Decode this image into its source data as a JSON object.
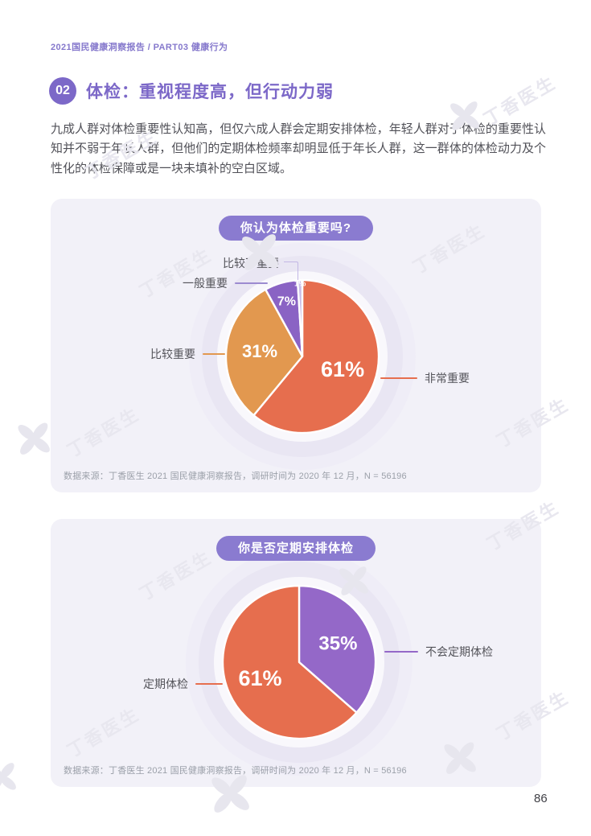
{
  "header": {
    "breadcrumb": "2021国民健康洞察报告 / PART03 健康行为"
  },
  "section": {
    "badge": "02",
    "title": "体检：重视程度高，但行动力弱"
  },
  "intro": "九成人群对体检重要性认知高，但仅六成人群会定期安排体检，年轻人群对于体检的重要性认知并不弱于年长人群，但他们的定期体检频率却明显低于年长人群，这一群体的体检动力及个性化的体检保障或是一块未填补的空白区域。",
  "watermark": {
    "text": "丁香医生"
  },
  "page_number": "86",
  "brand_colors": {
    "purple": "#7C68C8",
    "pill_purple": "#8A7BD0",
    "coral": "#E66E4E",
    "orange": "#E2984F",
    "slice_purple": "#8A63C4",
    "slice_lavender": "#C9BEE8",
    "card_bg": "#F2F1F8"
  },
  "charts": [
    {
      "id": "importance",
      "title": "你认为体检重要吗?",
      "source": "数据来源：丁香医生 2021 国民健康洞察报告，调研时间为 2020 年 12 月，N = 56196",
      "chart_data": {
        "type": "pie",
        "start_angle_deg": 0,
        "legend_position": "callout-lines",
        "series": [
          {
            "label": "非常重要",
            "value": 61,
            "color": "#E66E4E"
          },
          {
            "label": "比较重要",
            "value": 31,
            "color": "#E2984F"
          },
          {
            "label": "一般重要",
            "value": 7,
            "color": "#8A63C4"
          },
          {
            "label": "比较不重要",
            "value": 1,
            "color": "#C9BEE8"
          }
        ]
      }
    },
    {
      "id": "schedule",
      "title": "你是否定期安排体检",
      "source": "数据来源：丁香医生 2021 国民健康洞察报告，调研时间为 2020 年 12 月，N = 56196",
      "chart_data": {
        "type": "pie",
        "start_angle_deg": 0,
        "legend_position": "callout-lines",
        "series": [
          {
            "label": "不会定期体检",
            "value": 35,
            "color": "#9468C8"
          },
          {
            "label": "定期体检",
            "value": 61,
            "color": "#E66E4E"
          }
        ]
      }
    }
  ]
}
